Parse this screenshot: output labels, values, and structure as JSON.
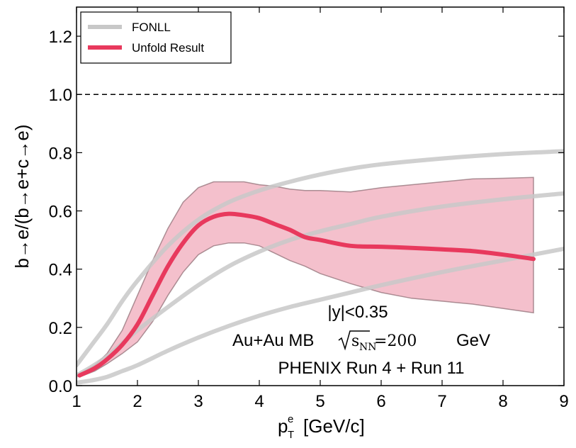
{
  "chart_data": {
    "type": "line",
    "xlabel": "p",
    "xlabel_super": "e",
    "xlabel_sub": "T",
    "xlabel_unit": "[GeV/c]",
    "ylabel": "b→e/(b→e+c→e)",
    "xlim": [
      1,
      9
    ],
    "ylim": [
      0,
      1.3
    ],
    "xticks": [
      1,
      2,
      3,
      4,
      5,
      6,
      7,
      8,
      9
    ],
    "yticks": [
      0.0,
      0.2,
      0.4,
      0.6,
      0.8,
      1.0,
      1.2
    ],
    "ytick_labels": [
      "0.0",
      "0.2",
      "0.4",
      "0.6",
      "0.8",
      "1.0",
      "1.2"
    ],
    "reference_line": {
      "y": 1.0,
      "style": "dashed"
    },
    "legend": {
      "position": "top-left",
      "entries": [
        {
          "label": "FONLL",
          "color": "#c8c8c8"
        },
        {
          "label": "Unfold Result",
          "color": "#e8395d"
        }
      ]
    },
    "colors": {
      "fonll": "#c8c8c8",
      "unfold": "#e8395d",
      "band": "#f2b5c3",
      "band_edge": "#8a6a70"
    },
    "series": [
      {
        "name": "FONLL upper",
        "x": [
          1.0,
          1.25,
          1.5,
          1.75,
          2.0,
          2.5,
          3.0,
          3.5,
          4.0,
          4.5,
          5.0,
          5.5,
          6.0,
          7.0,
          8.0,
          9.0
        ],
        "y": [
          0.07,
          0.14,
          0.21,
          0.29,
          0.36,
          0.48,
          0.57,
          0.63,
          0.67,
          0.7,
          0.725,
          0.745,
          0.76,
          0.78,
          0.795,
          0.805
        ]
      },
      {
        "name": "FONLL central",
        "x": [
          1.0,
          1.25,
          1.5,
          1.75,
          2.0,
          2.5,
          3.0,
          3.5,
          4.0,
          4.5,
          5.0,
          5.5,
          6.0,
          7.0,
          8.0,
          9.0
        ],
        "y": [
          0.035,
          0.065,
          0.1,
          0.145,
          0.19,
          0.27,
          0.345,
          0.41,
          0.46,
          0.5,
          0.53,
          0.555,
          0.58,
          0.615,
          0.64,
          0.66
        ]
      },
      {
        "name": "FONLL lower",
        "x": [
          1.0,
          1.25,
          1.5,
          1.75,
          2.0,
          2.5,
          3.0,
          3.5,
          4.0,
          4.5,
          5.0,
          5.5,
          6.0,
          7.0,
          8.0,
          9.0
        ],
        "y": [
          0.01,
          0.018,
          0.03,
          0.05,
          0.07,
          0.12,
          0.165,
          0.205,
          0.24,
          0.27,
          0.295,
          0.32,
          0.345,
          0.39,
          0.43,
          0.47
        ]
      },
      {
        "name": "Unfold Result",
        "x": [
          1.05,
          1.3,
          1.5,
          1.75,
          2.0,
          2.25,
          2.5,
          2.75,
          3.0,
          3.25,
          3.5,
          3.75,
          4.0,
          4.25,
          4.5,
          4.75,
          5.0,
          5.5,
          6.0,
          6.5,
          7.0,
          7.5,
          8.0,
          8.5
        ],
        "y": [
          0.035,
          0.06,
          0.09,
          0.14,
          0.21,
          0.31,
          0.41,
          0.49,
          0.55,
          0.58,
          0.59,
          0.585,
          0.575,
          0.555,
          0.535,
          0.51,
          0.5,
          0.48,
          0.477,
          0.473,
          0.468,
          0.462,
          0.45,
          0.435
        ]
      }
    ],
    "band": {
      "name": "Unfold uncertainty",
      "x": [
        1.05,
        1.3,
        1.5,
        1.75,
        2.0,
        2.25,
        2.5,
        2.75,
        3.0,
        3.25,
        3.5,
        3.75,
        4.0,
        4.25,
        4.5,
        4.75,
        5.0,
        5.5,
        6.0,
        6.5,
        7.0,
        7.5,
        8.0,
        8.5
      ],
      "upper": [
        0.04,
        0.07,
        0.11,
        0.19,
        0.31,
        0.43,
        0.54,
        0.63,
        0.68,
        0.7,
        0.7,
        0.7,
        0.69,
        0.685,
        0.675,
        0.67,
        0.67,
        0.665,
        0.68,
        0.69,
        0.7,
        0.71,
        0.712,
        0.715
      ],
      "lower": [
        0.03,
        0.05,
        0.075,
        0.11,
        0.15,
        0.22,
        0.31,
        0.39,
        0.45,
        0.48,
        0.49,
        0.49,
        0.48,
        0.455,
        0.43,
        0.41,
        0.385,
        0.35,
        0.32,
        0.3,
        0.29,
        0.28,
        0.265,
        0.25
      ]
    },
    "annotations": {
      "line1": "|y|<0.35",
      "line2_prefix": "Au+Au MB",
      "line2_sqrt": "s",
      "line2_sub": "NN",
      "line2_eq": "=200",
      "line2_suffix": "GeV",
      "line3": "PHENIX Run 4 + Run 11"
    }
  }
}
